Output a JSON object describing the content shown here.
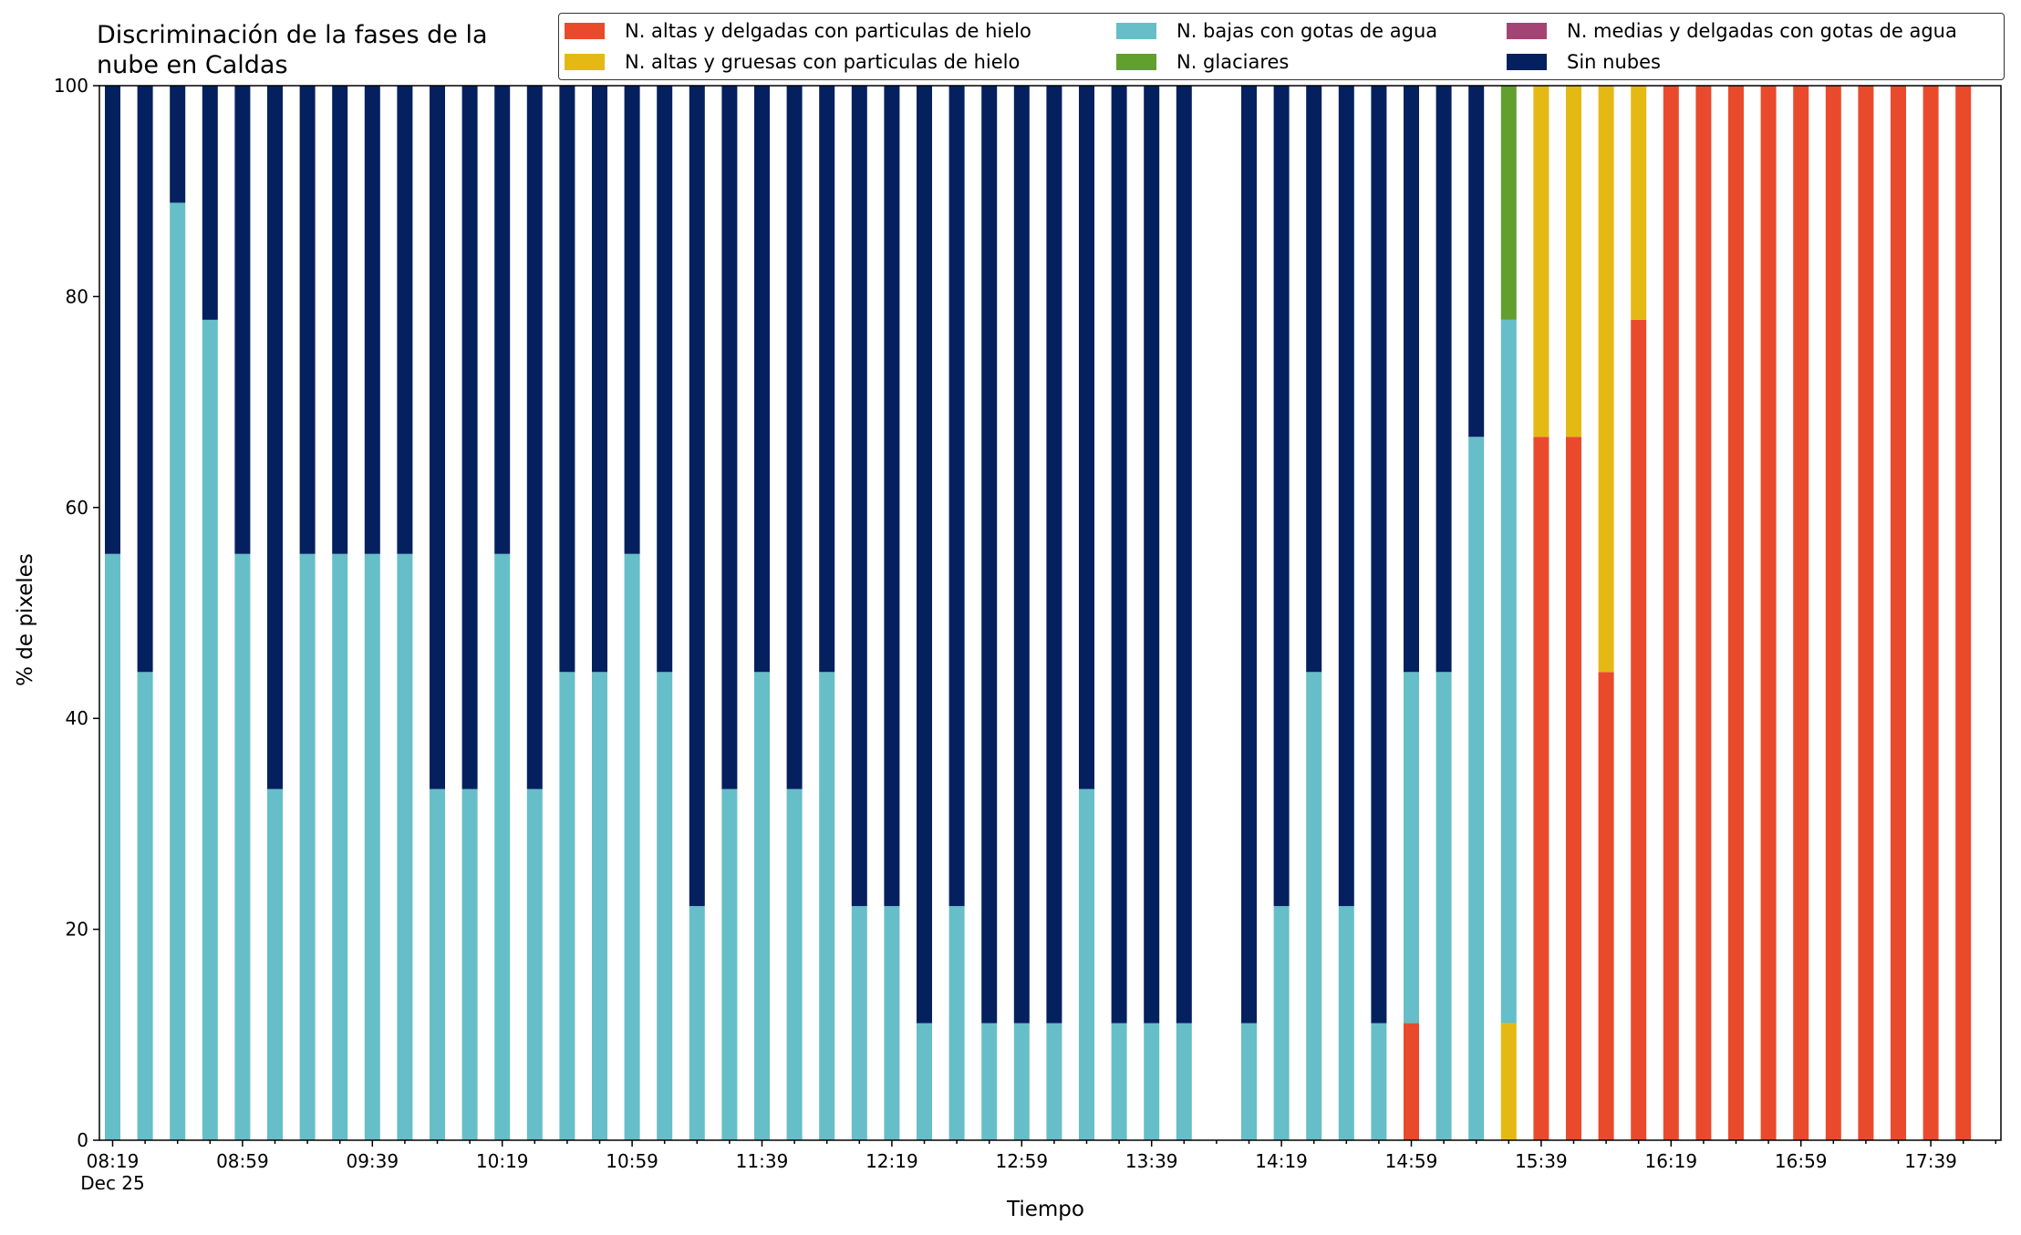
{
  "chart_data": {
    "type": "bar",
    "stacked": true,
    "title": "Discriminación de la fases de la\nnube en Caldas",
    "xlabel": "Tiempo",
    "ylabel": "% de pixeles",
    "ylim": [
      0,
      100
    ],
    "yticks": [
      0,
      20,
      40,
      60,
      80,
      100
    ],
    "grid": false,
    "legend_position": "top-right",
    "x_tick_labels": [
      "08:19\nDec 25",
      "08:59",
      "09:39",
      "10:19",
      "10:59",
      "11:39",
      "12:19",
      "12:59",
      "13:39",
      "14:19",
      "14:59",
      "15:39",
      "16:19",
      "16:59",
      "17:39"
    ],
    "categories": [
      "08:19",
      "08:29",
      "08:39",
      "08:49",
      "08:59",
      "09:09",
      "09:19",
      "09:29",
      "09:39",
      "09:49",
      "09:59",
      "10:09",
      "10:19",
      "10:29",
      "10:39",
      "10:49",
      "10:59",
      "11:09",
      "11:19",
      "11:29",
      "11:39",
      "11:49",
      "11:59",
      "12:09",
      "12:19",
      "12:29",
      "12:39",
      "12:49",
      "12:59",
      "13:09",
      "13:19",
      "13:29",
      "13:39",
      "13:49",
      "13:59",
      "14:09",
      "14:19",
      "14:29",
      "14:39",
      "14:49",
      "14:59",
      "15:09",
      "15:19",
      "15:29",
      "15:39",
      "15:49",
      "15:59",
      "16:09",
      "16:19",
      "16:29",
      "16:39",
      "16:49",
      "16:59",
      "17:09",
      "17:19",
      "17:29",
      "17:39",
      "17:49"
    ],
    "series": [
      {
        "name": "N. altas y delgadas con particulas de hielo",
        "color": "#ea4a2c",
        "values": [
          0,
          0,
          0,
          0,
          0,
          0,
          0,
          0,
          0,
          0,
          0,
          0,
          0,
          0,
          0,
          0,
          0,
          0,
          0,
          0,
          0,
          0,
          0,
          0,
          0,
          0,
          0,
          0,
          0,
          0,
          0,
          0,
          0,
          0,
          0,
          0,
          0,
          0,
          0,
          0,
          11.1,
          0,
          0,
          0,
          66.7,
          66.7,
          44.4,
          77.8,
          100,
          100,
          100,
          100,
          100,
          100,
          100,
          100,
          100,
          100
        ]
      },
      {
        "name": "N. altas y gruesas con particulas de hielo",
        "color": "#e5b913",
        "values": [
          0,
          0,
          0,
          0,
          0,
          0,
          0,
          0,
          0,
          0,
          0,
          0,
          0,
          0,
          0,
          0,
          0,
          0,
          0,
          0,
          0,
          0,
          0,
          0,
          0,
          0,
          0,
          0,
          0,
          0,
          0,
          0,
          0,
          0,
          0,
          0,
          0,
          0,
          0,
          0,
          0,
          0,
          0,
          11.1,
          33.3,
          33.3,
          55.6,
          22.2,
          0,
          0,
          0,
          0,
          0,
          0,
          0,
          0,
          0,
          0
        ]
      },
      {
        "name": "N. bajas con gotas de agua",
        "color": "#66bec8",
        "values": [
          55.6,
          44.4,
          88.9,
          77.8,
          55.6,
          33.3,
          55.6,
          55.6,
          55.6,
          55.6,
          33.3,
          33.3,
          55.6,
          33.3,
          44.4,
          44.4,
          55.6,
          44.4,
          22.2,
          33.3,
          44.4,
          33.3,
          44.4,
          22.2,
          22.2,
          11.1,
          22.2,
          11.1,
          11.1,
          11.1,
          33.3,
          11.1,
          11.1,
          11.1,
          0,
          11.1,
          22.2,
          44.4,
          22.2,
          11.1,
          33.3,
          44.4,
          66.7,
          66.7,
          0,
          0,
          0,
          0,
          0,
          0,
          0,
          0,
          0,
          0,
          0,
          0,
          0,
          0
        ]
      },
      {
        "name": "N. glaciares",
        "color": "#61a02f",
        "values": [
          0,
          0,
          0,
          0,
          0,
          0,
          0,
          0,
          0,
          0,
          0,
          0,
          0,
          0,
          0,
          0,
          0,
          0,
          0,
          0,
          0,
          0,
          0,
          0,
          0,
          0,
          0,
          0,
          0,
          0,
          0,
          0,
          0,
          0,
          0,
          0,
          0,
          0,
          0,
          0,
          0,
          0,
          0,
          22.2,
          0,
          0,
          0,
          0,
          0,
          0,
          0,
          0,
          0,
          0,
          0,
          0,
          0,
          0
        ]
      },
      {
        "name": "N. medias y delgadas con gotas de agua",
        "color": "#a34474",
        "values": [
          0,
          0,
          0,
          0,
          0,
          0,
          0,
          0,
          0,
          0,
          0,
          0,
          0,
          0,
          0,
          0,
          0,
          0,
          0,
          0,
          0,
          0,
          0,
          0,
          0,
          0,
          0,
          0,
          0,
          0,
          0,
          0,
          0,
          0,
          0,
          0,
          0,
          0,
          0,
          0,
          0,
          0,
          0,
          0,
          0,
          0,
          0,
          0,
          0,
          0,
          0,
          0,
          0,
          0,
          0,
          0,
          0,
          0
        ]
      },
      {
        "name": "Sin nubes",
        "color": "#04205f",
        "values": [
          44.4,
          55.6,
          11.1,
          22.2,
          44.4,
          66.7,
          44.4,
          44.4,
          44.4,
          44.4,
          66.7,
          66.7,
          44.4,
          66.7,
          55.6,
          55.6,
          44.4,
          55.6,
          77.8,
          66.7,
          55.6,
          66.7,
          55.6,
          77.8,
          77.8,
          88.9,
          77.8,
          88.9,
          88.9,
          88.9,
          66.7,
          88.9,
          88.9,
          88.9,
          0,
          88.9,
          77.8,
          55.6,
          77.8,
          88.9,
          55.6,
          55.6,
          33.3,
          0,
          0,
          0,
          0,
          0,
          0,
          0,
          0,
          0,
          0,
          0,
          0,
          0,
          0,
          0
        ]
      }
    ]
  }
}
